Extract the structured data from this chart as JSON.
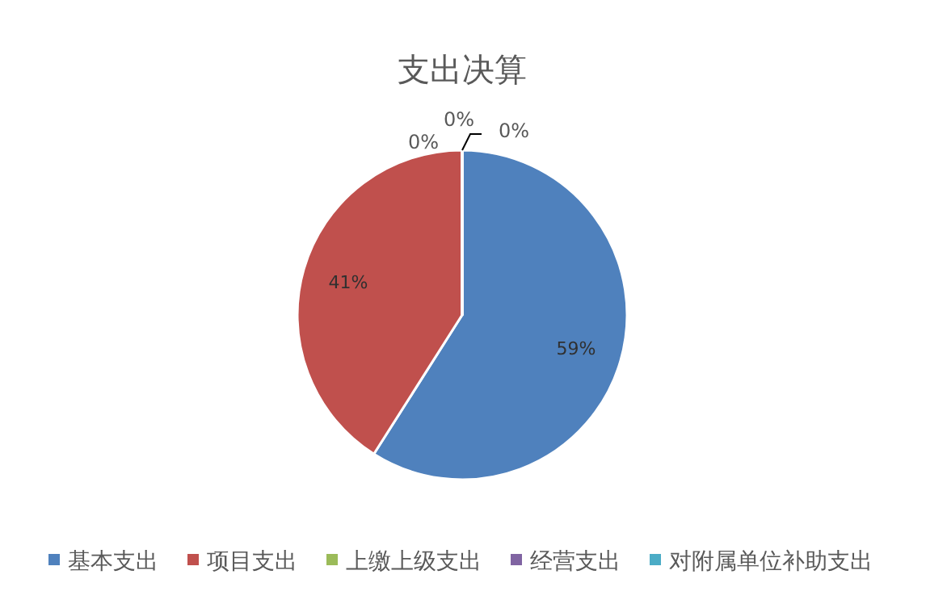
{
  "chart_data": {
    "type": "pie",
    "title": "支出决算",
    "categories": [
      "基本支出",
      "项目支出",
      "上缴上级支出",
      "经营支出",
      "对附属单位补助支出"
    ],
    "values": [
      59,
      41,
      0,
      0,
      0
    ],
    "colors": [
      "#4f81bd",
      "#c0504d",
      "#9bbb59",
      "#8064a2",
      "#4bacc6"
    ],
    "value_labels": [
      "59%",
      "41%",
      "0%",
      "0%",
      "0%"
    ],
    "legend": "bottom"
  }
}
